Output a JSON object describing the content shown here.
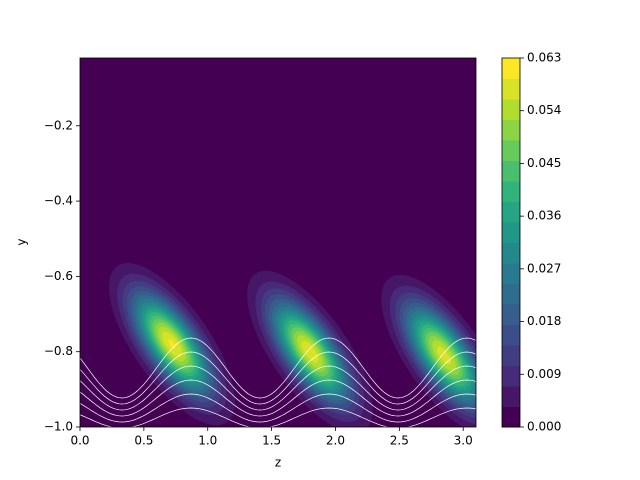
{
  "chart_data": {
    "type": "contour",
    "xlabel": "z",
    "ylabel": "y",
    "colormap": "viridis",
    "xlim": [
      0,
      3.1
    ],
    "ylim": [
      -1,
      -0.02
    ],
    "xticks": [
      {
        "value": 0,
        "label": "0.0"
      },
      {
        "value": 0.5,
        "label": "0.5"
      },
      {
        "value": 1,
        "label": "1.0"
      },
      {
        "value": 1.5,
        "label": "1.5"
      },
      {
        "value": 2,
        "label": "2.0"
      },
      {
        "value": 2.5,
        "label": "2.5"
      },
      {
        "value": 3,
        "label": "3.0"
      }
    ],
    "yticks": [
      {
        "value": -1,
        "label": "−1.0"
      },
      {
        "value": -0.8,
        "label": "−0.8"
      },
      {
        "value": -0.6,
        "label": "−0.6"
      },
      {
        "value": -0.4,
        "label": "−0.4"
      },
      {
        "value": -0.2,
        "label": "−0.2"
      }
    ],
    "levels": [
      0,
      0.0035,
      0.007,
      0.0105,
      0.014,
      0.0175,
      0.021,
      0.0245,
      0.028,
      0.0315,
      0.035,
      0.0385,
      0.042,
      0.0455,
      0.049,
      0.0525,
      0.056,
      0.0595,
      0.063
    ],
    "colorbar_ticks": [
      {
        "value": 0,
        "label": "0.000"
      },
      {
        "value": 0.009,
        "label": "0.009"
      },
      {
        "value": 0.018,
        "label": "0.018"
      },
      {
        "value": 0.027,
        "label": "0.027"
      },
      {
        "value": 0.036,
        "label": "0.036"
      },
      {
        "value": 0.045,
        "label": "0.045"
      },
      {
        "value": 0.054,
        "label": "0.054"
      },
      {
        "value": 0.063,
        "label": "0.063"
      }
    ],
    "peaks": [
      {
        "x": 0.72,
        "y": -0.78,
        "value": 0.06
      },
      {
        "x": 1.8,
        "y": -0.8,
        "value": 0.059
      },
      {
        "x": 2.85,
        "y": -0.81,
        "value": 0.058
      }
    ]
  }
}
